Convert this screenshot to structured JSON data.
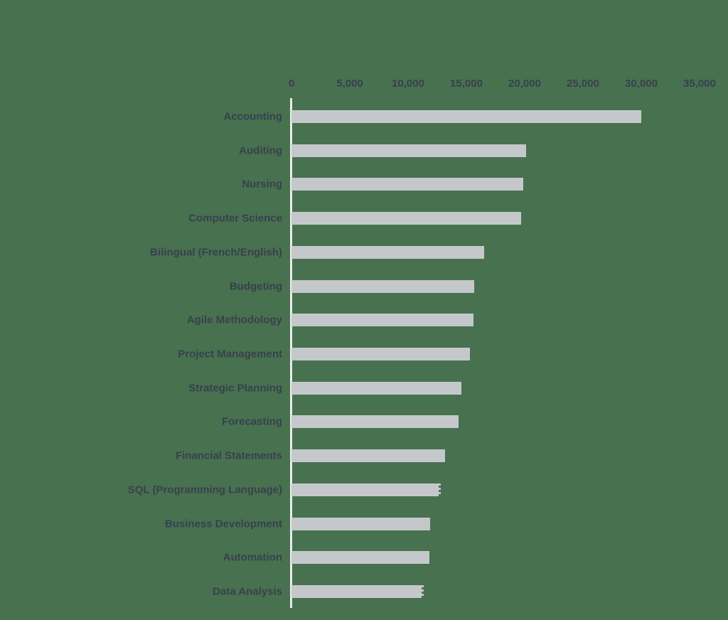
{
  "page": {
    "background_color": "#48714f"
  },
  "chart_data": {
    "type": "bar",
    "orientation": "horizontal",
    "title": "",
    "xlabel": "",
    "ylabel": "",
    "grid": "off",
    "legend": "none",
    "categories": [
      "Accounting",
      "Auditing",
      "Nursing",
      "Computer Science",
      "Bilingual (French/English)",
      "Budgeting",
      "Agile Methodology",
      "Project Management",
      "Strategic Planning",
      "Forecasting",
      "Financial Statements",
      "SQL (Programming Language)",
      "Business Development",
      "Automation",
      "Data Analysis"
    ],
    "values": [
      30000,
      20100,
      19900,
      19700,
      16500,
      15700,
      15600,
      15300,
      14600,
      14300,
      13200,
      12800,
      11900,
      11800,
      11350
    ],
    "dashed_end_indices": [
      11,
      14
    ],
    "bars_with_dashed_end": [
      "SQL (Programming Language)",
      "Data Analysis"
    ],
    "x_axis": {
      "position": "top",
      "min": 0,
      "max": 35000,
      "ticks": [
        {
          "label": "0",
          "value": 0
        },
        {
          "label": "5,000",
          "value": 5000
        },
        {
          "label": "10,000",
          "value": 10000
        },
        {
          "label": "15,000",
          "value": 15000
        },
        {
          "label": "20,000",
          "value": 20000
        },
        {
          "label": "25,000",
          "value": 25000
        },
        {
          "label": "30,000",
          "value": 30000
        },
        {
          "label": "35,000",
          "value": 35000
        }
      ]
    },
    "colors": {
      "background": "#48714f",
      "bar": "#c5c8cb",
      "axis_line": "#e9ebe9",
      "text": "#38404e"
    }
  }
}
